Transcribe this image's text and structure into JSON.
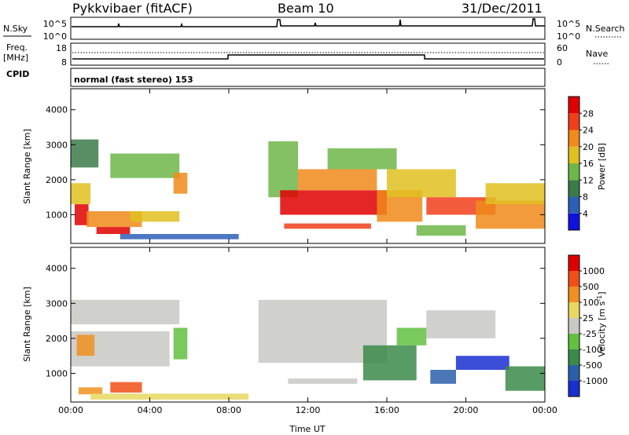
{
  "header": {
    "radar": "Pykkvibaer (fitACF)",
    "beam": "Beam 10",
    "date": "31/Dec/2011"
  },
  "strip_nsky": {
    "left_label": "N.Sky",
    "right_label": "N.Search",
    "left_ticks": [
      "10^5",
      "10^0"
    ],
    "right_ticks": [
      "10^5",
      "10^0"
    ]
  },
  "strip_freq": {
    "left_label_1": "Freq.",
    "left_label_2": "[MHz]",
    "right_label": "Nave",
    "left_ticks": [
      "18",
      "8"
    ],
    "right_ticks": [
      "60",
      "0"
    ]
  },
  "strip_cpid": {
    "left_label": "CPID",
    "text": "normal (fast stereo) 153"
  },
  "chart_data": [
    {
      "type": "heatmap",
      "quantity": "power",
      "ylabel": "Slant Range [km]",
      "yticks": [
        1000,
        2000,
        3000,
        4000
      ],
      "ylim": [
        180,
        4600
      ],
      "xlim": [
        0,
        24
      ],
      "colorbar": {
        "label": "Power [dB]",
        "ticks": [
          "28",
          "24",
          "20",
          "16",
          "12",
          "8",
          "4"
        ],
        "colors": [
          "#1010e0",
          "#2d5fb8",
          "#3c7a4a",
          "#6fb64a",
          "#e0c020",
          "#f08a1a",
          "#f0401a",
          "#e00000"
        ],
        "range": [
          0,
          32
        ]
      },
      "regions": [
        {
          "t0": 0.0,
          "t1": 1.4,
          "r0": 2350,
          "r1": 3150,
          "level": 2
        },
        {
          "t0": 0.0,
          "t1": 1.0,
          "r0": 1300,
          "r1": 1900,
          "level": 4
        },
        {
          "t0": 0.2,
          "t1": 0.9,
          "r0": 700,
          "r1": 1300,
          "level": 7
        },
        {
          "t0": 0.8,
          "t1": 3.6,
          "r0": 650,
          "r1": 1100,
          "level": 5
        },
        {
          "t0": 1.3,
          "t1": 3.0,
          "r0": 450,
          "r1": 650,
          "level": 7
        },
        {
          "t0": 3.0,
          "t1": 5.5,
          "r0": 800,
          "r1": 1100,
          "level": 4
        },
        {
          "t0": 2.0,
          "t1": 5.5,
          "r0": 2050,
          "r1": 2750,
          "level": 3
        },
        {
          "t0": 5.2,
          "t1": 5.9,
          "r0": 1600,
          "r1": 2200,
          "level": 5
        },
        {
          "t0": 2.5,
          "t1": 8.5,
          "r0": 300,
          "r1": 450,
          "level": 1
        },
        {
          "t0": 10.0,
          "t1": 11.5,
          "r0": 1500,
          "r1": 3100,
          "level": 3
        },
        {
          "t0": 10.6,
          "t1": 16.0,
          "r0": 1000,
          "r1": 1700,
          "level": 7
        },
        {
          "t0": 11.5,
          "t1": 15.5,
          "r0": 1700,
          "r1": 2300,
          "level": 5
        },
        {
          "t0": 13.0,
          "t1": 16.5,
          "r0": 2300,
          "r1": 2900,
          "level": 3
        },
        {
          "t0": 10.8,
          "t1": 15.2,
          "r0": 600,
          "r1": 750,
          "level": 6
        },
        {
          "t0": 15.5,
          "t1": 17.8,
          "r0": 800,
          "r1": 1700,
          "level": 5
        },
        {
          "t0": 16.0,
          "t1": 19.5,
          "r0": 1500,
          "r1": 2300,
          "level": 4
        },
        {
          "t0": 17.5,
          "t1": 20.0,
          "r0": 400,
          "r1": 700,
          "level": 3
        },
        {
          "t0": 18.0,
          "t1": 21.5,
          "r0": 1000,
          "r1": 1500,
          "level": 6
        },
        {
          "t0": 20.5,
          "t1": 24.0,
          "r0": 600,
          "r1": 1400,
          "level": 5
        },
        {
          "t0": 21.0,
          "t1": 24.0,
          "r0": 1300,
          "r1": 1900,
          "level": 4
        }
      ]
    },
    {
      "type": "heatmap",
      "quantity": "velocity",
      "ylabel": "Slant Range [km]",
      "xlabel": "Time UT",
      "xticks": [
        "00:00",
        "04:00",
        "08:00",
        "12:00",
        "16:00",
        "20:00",
        "00:00"
      ],
      "xtick_values": [
        0,
        4,
        8,
        12,
        16,
        20,
        24
      ],
      "yticks": [
        1000,
        2000,
        3000,
        4000
      ],
      "ylim": [
        180,
        4600
      ],
      "xlim": [
        0,
        24
      ],
      "colorbar": {
        "label": "Velocity [m s^-1]",
        "ticks": [
          "1000",
          "500",
          "100",
          "25",
          "-25",
          "-100",
          "-500",
          "-1000"
        ],
        "colors": [
          "#1a2fd0",
          "#2b5faa",
          "#3c8a4a",
          "#62c040",
          "#c8c8c4",
          "#e8d860",
          "#f09020",
          "#f05018",
          "#e00000"
        ]
      },
      "regions": [
        {
          "t0": 0.0,
          "t1": 5.5,
          "r0": 2400,
          "r1": 3100,
          "level": 4
        },
        {
          "t0": 0.0,
          "t1": 5.0,
          "r0": 1200,
          "r1": 2200,
          "level": 4
        },
        {
          "t0": 0.3,
          "t1": 1.2,
          "r0": 1500,
          "r1": 2100,
          "level": 6
        },
        {
          "t0": 2.0,
          "t1": 3.6,
          "r0": 450,
          "r1": 750,
          "level": 7
        },
        {
          "t0": 0.4,
          "t1": 1.6,
          "r0": 400,
          "r1": 600,
          "level": 6
        },
        {
          "t0": 5.2,
          "t1": 5.9,
          "r0": 1400,
          "r1": 2300,
          "level": 3
        },
        {
          "t0": 1.0,
          "t1": 9.0,
          "r0": 250,
          "r1": 420,
          "level": 5
        },
        {
          "t0": 9.5,
          "t1": 16.0,
          "r0": 1300,
          "r1": 3100,
          "level": 4
        },
        {
          "t0": 11.0,
          "t1": 14.5,
          "r0": 700,
          "r1": 850,
          "level": 4
        },
        {
          "t0": 14.8,
          "t1": 17.5,
          "r0": 800,
          "r1": 1800,
          "level": 2
        },
        {
          "t0": 18.0,
          "t1": 21.5,
          "r0": 2000,
          "r1": 2800,
          "level": 4
        },
        {
          "t0": 19.5,
          "t1": 22.2,
          "r0": 1100,
          "r1": 1500,
          "level": 0
        },
        {
          "t0": 18.2,
          "t1": 19.5,
          "r0": 700,
          "r1": 1100,
          "level": 1
        },
        {
          "t0": 22.0,
          "t1": 24.0,
          "r0": 500,
          "r1": 1200,
          "level": 2
        },
        {
          "t0": 16.5,
          "t1": 18.0,
          "r0": 1800,
          "r1": 2300,
          "level": 3
        }
      ]
    }
  ]
}
